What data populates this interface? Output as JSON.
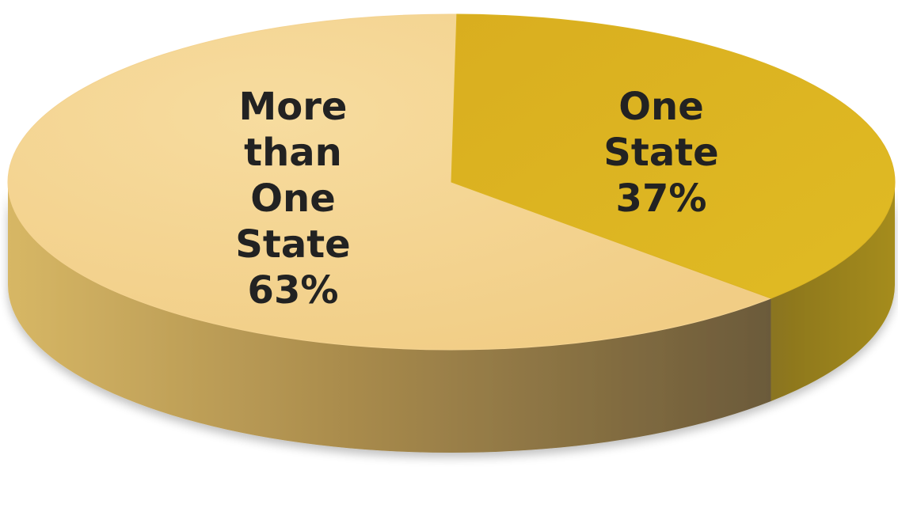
{
  "chart_data": {
    "type": "pie",
    "title": "",
    "style": "3d",
    "slices": [
      {
        "label_lines": [
          "More",
          "than",
          "One",
          "State"
        ],
        "value_text": "63%",
        "value": 63,
        "color": "#f4d391"
      },
      {
        "label_lines": [
          "One",
          "State"
        ],
        "value_text": "37%",
        "value": 37,
        "color": "#dcb423"
      }
    ]
  }
}
